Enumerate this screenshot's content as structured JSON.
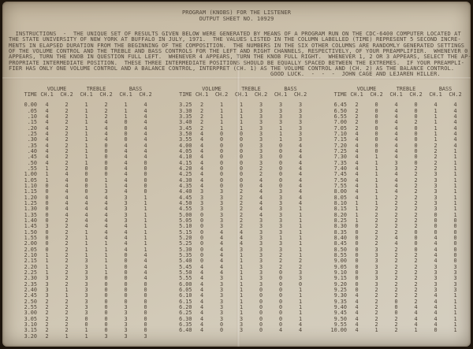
{
  "document": {
    "title_line1": "PROGRAM (KNOBS) FOR THE LISTENER",
    "title_line2": "OUTPUT SHEET NO. 10929",
    "instructions": "  INSTRUCTIONS  -  THE UNIQUE SET OF RESULTS GIVEN BELOW WERE GENERATED BY MEANS OF A PROGRAM RUN ON THE CDC-6400 COMPUTER LOCATED AT\nTHE STATE UNIVERSITY OF NEW YORK AT BUFFALO IN JULY, 1971.  THE VALUES LISTED IN THE COLUMN LABELLED (TIME) REPRESENT 5 SECOND INCRE-\nMENTS IN ELAPSED DURATION FROM THE BEGINNING OF THE COMPOSITION.  THE NUMBERS IN THE SIX OTHER COLUMNS ARE RANDOMLY GENERATED SETTINGS\nOF THE VOLUME CONTROL AND THE TREBLE AND BASS CONTROLS FOR THE LEFT AND RIGHT CHANNELS, RESPECTIVELY, OF YOUR PREAMPLIFIER.  WHENEVER 0\nAPPEARS, TURN THE KNOB IN QUESTION FULL LEFT.  WHENEVER 4 APPEARS, TURN THE KNOB FULL RIGHT.  WHENEVER 1, 2 OR 3 APPEARS, SELECT THE AP-\nPROPRIATE INTERMEDIATE POSITION.  THESE THREE INTERMEDIATE POSITIONS SHOULD BE EQUALLY SPACED BETWEEN THE EXTREMES.  IF YOUR PREAMPLI-\nFIER HAS ONLY ONE VOLUME CONTROL AND A BALANCE CONTROL, INTERPRET (CH. 1) AS THE VOLUME CONTROL AND (CH. 2) AS THE BALANCE CONTROL.",
    "signoff": "GOOD LUCK.  -  -  -  JOHN CAGE AND LEJAREN HILLER."
  },
  "colors": {
    "paper": "#cdc2ae",
    "ink": "#51463a",
    "frame": "#1d150d"
  },
  "table": {
    "time_header": "TIME",
    "group_headers": [
      "VOLUME",
      "TREBLE",
      "BASS"
    ],
    "channel_headers": [
      "CH.1",
      "CH.2",
      "CH.1",
      "CH.2",
      "CH.1",
      "CH.2"
    ],
    "columns": [
      {
        "rows": [
          [
            "0.00",
            4,
            2,
            1,
            2,
            1,
            4
          ],
          [
            ".05",
            4,
            2,
            1,
            2,
            1,
            4
          ],
          [
            ".10",
            4,
            2,
            1,
            2,
            1,
            4
          ],
          [
            ".15",
            4,
            2,
            1,
            4,
            0,
            4
          ],
          [
            ".20",
            4,
            2,
            1,
            4,
            0,
            4
          ],
          [
            ".25",
            4,
            2,
            1,
            4,
            0,
            4
          ],
          [
            ".30",
            4,
            2,
            1,
            4,
            0,
            4
          ],
          [
            ".35",
            4,
            2,
            1,
            0,
            4,
            4
          ],
          [
            ".40",
            4,
            2,
            1,
            0,
            4,
            4
          ],
          [
            ".45",
            4,
            2,
            1,
            0,
            4,
            4
          ],
          [
            ".50",
            4,
            2,
            1,
            0,
            4,
            0
          ],
          [
            ".55",
            1,
            2,
            0,
            0,
            4,
            0
          ],
          [
            "1.00",
            1,
            4,
            0,
            0,
            4,
            0
          ],
          [
            "1.05",
            1,
            4,
            0,
            1,
            4,
            0
          ],
          [
            "1.10",
            0,
            4,
            0,
            1,
            4,
            0
          ],
          [
            "1.15",
            0,
            4,
            0,
            3,
            4,
            0
          ],
          [
            "1.20",
            0,
            4,
            4,
            4,
            3,
            1
          ],
          [
            "1.25",
            0,
            4,
            4,
            4,
            3,
            1
          ],
          [
            "1.30",
            0,
            4,
            4,
            4,
            3,
            1
          ],
          [
            "1.35",
            0,
            4,
            4,
            4,
            3,
            1
          ],
          [
            "1.40",
            0,
            2,
            4,
            4,
            3,
            1
          ],
          [
            "1.45",
            3,
            2,
            4,
            4,
            4,
            1
          ],
          [
            "1.50",
            0,
            2,
            1,
            4,
            4,
            1
          ],
          [
            "1.55",
            0,
            2,
            1,
            4,
            4,
            1
          ],
          [
            "2.00",
            0,
            2,
            1,
            1,
            4,
            1
          ],
          [
            "2.05",
            0,
            2,
            1,
            1,
            4,
            1
          ],
          [
            "2.10",
            1,
            2,
            1,
            1,
            0,
            4
          ],
          [
            "2.15",
            1,
            2,
            3,
            1,
            0,
            4
          ],
          [
            "2.20",
            1,
            2,
            3,
            1,
            0,
            4
          ],
          [
            "2.25",
            1,
            2,
            3,
            1,
            0,
            4
          ],
          [
            "2.30",
            3,
            2,
            3,
            0,
            0,
            4
          ],
          [
            "2.35",
            3,
            2,
            3,
            0,
            0,
            0
          ],
          [
            "2.40",
            3,
            1,
            3,
            0,
            0,
            0
          ],
          [
            "2.45",
            3,
            1,
            3,
            0,
            0,
            0
          ],
          [
            "2.50",
            2,
            2,
            3,
            0,
            0,
            0
          ],
          [
            "2.55",
            2,
            2,
            3,
            0,
            3,
            0
          ],
          [
            "3.00",
            2,
            2,
            3,
            0,
            3,
            0
          ],
          [
            "3.05",
            2,
            2,
            0,
            0,
            3,
            0
          ],
          [
            "3.10",
            2,
            2,
            0,
            0,
            3,
            0
          ],
          [
            "3.15",
            2,
            2,
            1,
            0,
            3,
            0
          ],
          [
            "3.20",
            2,
            1,
            1,
            3,
            3,
            3
          ]
        ]
      },
      {
        "rows": [
          [
            "3.25",
            2,
            1,
            1,
            3,
            3,
            3
          ],
          [
            "3.30",
            2,
            1,
            1,
            3,
            3,
            3
          ],
          [
            "3.35",
            2,
            1,
            1,
            3,
            3,
            3
          ],
          [
            "3.40",
            2,
            1,
            1,
            3,
            3,
            3
          ],
          [
            "3.45",
            2,
            1,
            1,
            3,
            1,
            3
          ],
          [
            "3.50",
            4,
            0,
            0,
            3,
            1,
            3
          ],
          [
            "3.55",
            4,
            0,
            0,
            3,
            1,
            3
          ],
          [
            "4.00",
            4,
            0,
            0,
            3,
            0,
            4
          ],
          [
            "4.05",
            4,
            0,
            0,
            3,
            0,
            4
          ],
          [
            "4.10",
            4,
            0,
            0,
            3,
            0,
            4
          ],
          [
            "4.15",
            4,
            0,
            0,
            3,
            0,
            4
          ],
          [
            "4.20",
            4,
            0,
            0,
            2,
            0,
            4
          ],
          [
            "4.25",
            4,
            0,
            0,
            2,
            0,
            4
          ],
          [
            "4.30",
            4,
            0,
            0,
            4,
            0,
            4
          ],
          [
            "4.35",
            4,
            0,
            0,
            4,
            0,
            4
          ],
          [
            "4.40",
            3,
            3,
            2,
            4,
            3,
            4
          ],
          [
            "4.45",
            3,
            3,
            2,
            4,
            3,
            4
          ],
          [
            "4.50",
            3,
            3,
            2,
            4,
            3,
            4
          ],
          [
            "4.55",
            3,
            3,
            2,
            4,
            3,
            1
          ],
          [
            "5.00",
            0,
            3,
            2,
            4,
            3,
            1
          ],
          [
            "5.05",
            0,
            3,
            2,
            3,
            3,
            1
          ],
          [
            "5.10",
            0,
            3,
            2,
            3,
            3,
            1
          ],
          [
            "5.15",
            0,
            4,
            4,
            3,
            3,
            1
          ],
          [
            "5.20",
            0,
            4,
            4,
            3,
            1,
            1
          ],
          [
            "5.25",
            0,
            4,
            4,
            3,
            3,
            1
          ],
          [
            "5.30",
            0,
            4,
            3,
            3,
            3,
            1
          ],
          [
            "5.35",
            0,
            4,
            1,
            3,
            2,
            1
          ],
          [
            "5.40",
            0,
            4,
            1,
            3,
            2,
            2
          ],
          [
            "5.45",
            4,
            4,
            1,
            3,
            2,
            2
          ],
          [
            "5.50",
            4,
            4,
            1,
            3,
            0,
            3
          ],
          [
            "5.55",
            4,
            3,
            1,
            3,
            0,
            3
          ],
          [
            "6.00",
            4,
            3,
            1,
            3,
            0,
            0
          ],
          [
            "6.05",
            4,
            3,
            1,
            0,
            0,
            1
          ],
          [
            "6.10",
            4,
            3,
            1,
            0,
            0,
            1
          ],
          [
            "6.15",
            4,
            3,
            1,
            0,
            0,
            1
          ],
          [
            "6.20",
            4,
            3,
            1,
            0,
            0,
            1
          ],
          [
            "6.25",
            4,
            3,
            1,
            0,
            0,
            1
          ],
          [
            "6.30",
            4,
            3,
            3,
            0,
            0,
            1
          ],
          [
            "6.35",
            4,
            0,
            3,
            0,
            0,
            4
          ],
          [
            "6.40",
            4,
            0,
            3,
            0,
            4,
            4
          ]
        ]
      },
      {
        "rows": [
          [
            "6.45",
            2,
            0,
            4,
            0,
            4,
            4
          ],
          [
            "6.50",
            2,
            0,
            4,
            0,
            1,
            4
          ],
          [
            "6.55",
            2,
            0,
            4,
            0,
            1,
            4
          ],
          [
            "7.00",
            2,
            0,
            4,
            2,
            1,
            4
          ],
          [
            "7.05",
            2,
            0,
            4,
            0,
            1,
            4
          ],
          [
            "7.10",
            4,
            0,
            4,
            0,
            1,
            4
          ],
          [
            "7.15",
            4,
            0,
            4,
            0,
            1,
            4
          ],
          [
            "7.20",
            4,
            0,
            4,
            0,
            2,
            4
          ],
          [
            "7.25",
            4,
            0,
            4,
            0,
            2,
            1
          ],
          [
            "7.30",
            4,
            1,
            4,
            0,
            2,
            1
          ],
          [
            "7.35",
            4,
            1,
            3,
            0,
            2,
            1
          ],
          [
            "7.40",
            4,
            1,
            3,
            2,
            2,
            1
          ],
          [
            "7.45",
            4,
            1,
            4,
            2,
            3,
            1
          ],
          [
            "7.50",
            4,
            1,
            4,
            2,
            3,
            1
          ],
          [
            "7.55",
            4,
            1,
            4,
            2,
            3,
            1
          ],
          [
            "8.00",
            4,
            1,
            4,
            2,
            3,
            1
          ],
          [
            "8.05",
            4,
            1,
            2,
            2,
            3,
            1
          ],
          [
            "8.10",
            1,
            1,
            2,
            2,
            3,
            1
          ],
          [
            "8.15",
            1,
            2,
            2,
            2,
            3,
            1
          ],
          [
            "8.20",
            1,
            2,
            2,
            2,
            0,
            1
          ],
          [
            "8.25",
            1,
            2,
            2,
            2,
            0,
            0
          ],
          [
            "8.30",
            0,
            2,
            2,
            2,
            0,
            0
          ],
          [
            "8.35",
            0,
            2,
            2,
            0,
            0,
            0
          ],
          [
            "8.40",
            0,
            2,
            4,
            0,
            4,
            0
          ],
          [
            "8.45",
            0,
            2,
            4,
            0,
            4,
            0
          ],
          [
            "8.50",
            0,
            3,
            2,
            0,
            4,
            0
          ],
          [
            "8.55",
            0,
            3,
            2,
            2,
            4,
            0
          ],
          [
            "9.00",
            0,
            3,
            2,
            2,
            4,
            0
          ],
          [
            "9.05",
            0,
            3,
            2,
            2,
            3,
            3
          ],
          [
            "9.10",
            0,
            3,
            2,
            2,
            3,
            3
          ],
          [
            "9.15",
            0,
            3,
            2,
            2,
            3,
            3
          ],
          [
            "9.20",
            0,
            3,
            2,
            2,
            3,
            3
          ],
          [
            "9.25",
            0,
            2,
            2,
            2,
            3,
            3
          ],
          [
            "9.30",
            4,
            2,
            2,
            2,
            4,
            1
          ],
          [
            "9.35",
            4,
            2,
            0,
            2,
            4,
            1
          ],
          [
            "9.40",
            4,
            2,
            0,
            4,
            4,
            1
          ],
          [
            "9.45",
            4,
            2,
            0,
            4,
            4,
            1
          ],
          [
            "9.50",
            4,
            2,
            2,
            4,
            4,
            1
          ],
          [
            "9.55",
            4,
            2,
            2,
            4,
            4,
            1
          ],
          [
            "10.00",
            4,
            1,
            2,
            1,
            0,
            1
          ]
        ]
      }
    ]
  }
}
